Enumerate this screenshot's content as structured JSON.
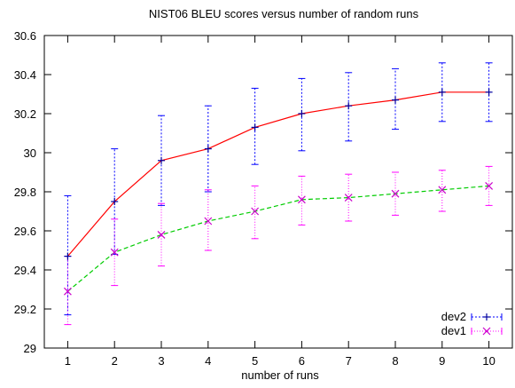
{
  "chart_data": {
    "type": "line",
    "title": "NIST06 BLEU scores versus number of random runs",
    "xlabel": "number of runs",
    "ylabel": "",
    "xlim": [
      0.5,
      10.5
    ],
    "ylim": [
      29,
      30.6
    ],
    "x": [
      1,
      2,
      3,
      4,
      5,
      6,
      7,
      8,
      9,
      10
    ],
    "yticks": [
      "29",
      "29.2",
      "29.4",
      "29.6",
      "29.8",
      "30",
      "30.2",
      "30.4",
      "30.6"
    ],
    "xticks": [
      "1",
      "2",
      "3",
      "4",
      "5",
      "6",
      "7",
      "8",
      "9",
      "10"
    ],
    "grid": false,
    "legend_position": "bottom-right",
    "series": [
      {
        "name": "dev2",
        "values": [
          29.47,
          29.75,
          29.96,
          30.02,
          30.13,
          30.2,
          30.24,
          30.27,
          30.31,
          30.31
        ],
        "err_low": [
          29.17,
          29.48,
          29.73,
          29.8,
          29.94,
          30.01,
          30.06,
          30.12,
          30.16,
          30.16
        ],
        "err_high": [
          29.78,
          30.02,
          30.19,
          30.24,
          30.33,
          30.38,
          30.41,
          30.43,
          30.46,
          30.46
        ],
        "line_color": "#ff0000",
        "marker_color": "#0000a0",
        "error_color": "#0000ff"
      },
      {
        "name": "dev1",
        "values": [
          29.29,
          29.49,
          29.58,
          29.65,
          29.7,
          29.76,
          29.77,
          29.79,
          29.81,
          29.83
        ],
        "err_low": [
          29.12,
          29.32,
          29.42,
          29.5,
          29.56,
          29.63,
          29.65,
          29.68,
          29.7,
          29.73
        ],
        "err_high": [
          29.47,
          29.66,
          29.74,
          29.81,
          29.83,
          29.88,
          29.89,
          29.9,
          29.91,
          29.93
        ],
        "line_color": "#00cc00",
        "marker_color": "#cc00cc",
        "error_color": "#ff00ff"
      }
    ]
  }
}
